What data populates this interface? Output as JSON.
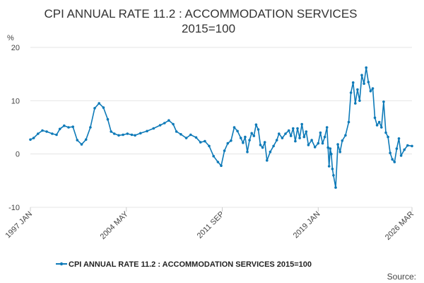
{
  "page": {
    "title_line1": "CPI ANNUAL RATE 11.2 : ACCOMMODATION SERVICES",
    "title_line2": "2015=100",
    "unit": "%",
    "source_label": "Source:",
    "legend_label": "CPI ANNUAL RATE 11.2 : ACCOMMODATION SERVICES 2015=100"
  },
  "chart_data": {
    "type": "line",
    "title": "CPI ANNUAL RATE 11.2 : ACCOMMODATION SERVICES 2015=100",
    "ylabel": "%",
    "ylim": [
      -10,
      20
    ],
    "y_ticks": [
      -10,
      0,
      10,
      20
    ],
    "x_range": [
      "1997-01",
      "2026-03"
    ],
    "x_ticks": [
      {
        "label": "1997 JAN",
        "date": "1997-01"
      },
      {
        "label": "2004 MAY",
        "date": "2004-05"
      },
      {
        "label": "2011 SEP",
        "date": "2011-09"
      },
      {
        "label": "2019 JAN",
        "date": "2019-01"
      },
      {
        "label": "2026 MAR",
        "date": "2026-03"
      }
    ],
    "grid": true,
    "legend_position": "bottom",
    "line_color": "#0e7ab8",
    "series": [
      {
        "name": "CPI ANNUAL RATE 11.2 : ACCOMMODATION SERVICES 2015=100",
        "points": [
          [
            "1997-01",
            2.7
          ],
          [
            "1997-04",
            3.0
          ],
          [
            "1997-08",
            3.8
          ],
          [
            "1997-12",
            4.4
          ],
          [
            "1998-04",
            4.2
          ],
          [
            "1998-09",
            3.8
          ],
          [
            "1999-01",
            3.6
          ],
          [
            "1999-04",
            4.7
          ],
          [
            "1999-08",
            5.3
          ],
          [
            "1999-12",
            5.0
          ],
          [
            "2000-04",
            5.1
          ],
          [
            "2000-08",
            2.6
          ],
          [
            "2000-12",
            1.8
          ],
          [
            "2001-04",
            2.7
          ],
          [
            "2001-08",
            5.0
          ],
          [
            "2001-12",
            8.6
          ],
          [
            "2002-04",
            9.5
          ],
          [
            "2002-08",
            8.7
          ],
          [
            "2002-12",
            6.5
          ],
          [
            "2003-03",
            4.2
          ],
          [
            "2003-06",
            3.8
          ],
          [
            "2003-10",
            3.5
          ],
          [
            "2004-02",
            3.6
          ],
          [
            "2004-06",
            3.8
          ],
          [
            "2004-10",
            3.6
          ],
          [
            "2005-01",
            3.5
          ],
          [
            "2005-06",
            3.9
          ],
          [
            "2005-12",
            4.3
          ],
          [
            "2006-06",
            4.8
          ],
          [
            "2006-12",
            5.4
          ],
          [
            "2007-04",
            5.8
          ],
          [
            "2007-08",
            6.3
          ],
          [
            "2007-12",
            5.6
          ],
          [
            "2008-03",
            4.2
          ],
          [
            "2008-07",
            3.7
          ],
          [
            "2008-12",
            3.0
          ],
          [
            "2009-04",
            3.6
          ],
          [
            "2009-09",
            3.1
          ],
          [
            "2010-01",
            2.2
          ],
          [
            "2010-05",
            2.4
          ],
          [
            "2010-09",
            1.5
          ],
          [
            "2011-01",
            -0.4
          ],
          [
            "2011-05",
            -1.5
          ],
          [
            "2011-08",
            -2.2
          ],
          [
            "2011-11",
            0.6
          ],
          [
            "2012-02",
            2.0
          ],
          [
            "2012-05",
            2.5
          ],
          [
            "2012-08",
            5.0
          ],
          [
            "2012-11",
            4.3
          ],
          [
            "2013-02",
            3.0
          ],
          [
            "2013-04",
            2.1
          ],
          [
            "2013-06",
            3.2
          ],
          [
            "2013-08",
            0.4
          ],
          [
            "2013-10",
            2.6
          ],
          [
            "2013-12",
            3.9
          ],
          [
            "2014-02",
            3.4
          ],
          [
            "2014-04",
            5.5
          ],
          [
            "2014-06",
            4.6
          ],
          [
            "2014-08",
            1.7
          ],
          [
            "2014-10",
            1.2
          ],
          [
            "2014-12",
            2.2
          ],
          [
            "2015-02",
            -1.2
          ],
          [
            "2015-05",
            0.4
          ],
          [
            "2015-08",
            1.5
          ],
          [
            "2015-11",
            2.6
          ],
          [
            "2016-01",
            3.8
          ],
          [
            "2016-04",
            3.0
          ],
          [
            "2016-07",
            3.8
          ],
          [
            "2016-10",
            4.4
          ],
          [
            "2016-12",
            3.4
          ],
          [
            "2017-02",
            4.8
          ],
          [
            "2017-04",
            2.4
          ],
          [
            "2017-06",
            4.8
          ],
          [
            "2017-08",
            3.0
          ],
          [
            "2017-10",
            5.6
          ],
          [
            "2017-12",
            3.2
          ],
          [
            "2018-02",
            4.2
          ],
          [
            "2018-04",
            1.7
          ],
          [
            "2018-07",
            2.6
          ],
          [
            "2018-10",
            1.3
          ],
          [
            "2019-01",
            2.0
          ],
          [
            "2019-03",
            4.0
          ],
          [
            "2019-05",
            2.0
          ],
          [
            "2019-07",
            3.2
          ],
          [
            "2019-09",
            5.0
          ],
          [
            "2019-10",
            1.2
          ],
          [
            "2019-11",
            -2.3
          ],
          [
            "2019-12",
            1.0
          ],
          [
            "2020-01",
            0.0
          ],
          [
            "2020-02",
            -2.8
          ],
          [
            "2020-03",
            -4.0
          ],
          [
            "2020-05",
            -6.3
          ],
          [
            "2020-07",
            1.8
          ],
          [
            "2020-09",
            0.4
          ],
          [
            "2020-11",
            2.5
          ],
          [
            "2021-02",
            3.5
          ],
          [
            "2021-05",
            6.0
          ],
          [
            "2021-07",
            11.5
          ],
          [
            "2021-09",
            13.4
          ],
          [
            "2021-11",
            9.5
          ],
          [
            "2022-01",
            12.1
          ],
          [
            "2022-03",
            10.0
          ],
          [
            "2022-05",
            14.8
          ],
          [
            "2022-07",
            13.2
          ],
          [
            "2022-09",
            16.2
          ],
          [
            "2022-11",
            13.5
          ],
          [
            "2023-01",
            11.8
          ],
          [
            "2023-03",
            12.3
          ],
          [
            "2023-05",
            6.8
          ],
          [
            "2023-07",
            5.4
          ],
          [
            "2023-09",
            6.0
          ],
          [
            "2023-11",
            5.0
          ],
          [
            "2024-01",
            9.8
          ],
          [
            "2024-03",
            4.0
          ],
          [
            "2024-05",
            3.2
          ],
          [
            "2024-07",
            0.2
          ],
          [
            "2024-09",
            -1.0
          ],
          [
            "2024-11",
            -1.5
          ],
          [
            "2025-01",
            1.0
          ],
          [
            "2025-03",
            2.9
          ],
          [
            "2025-05",
            -0.3
          ],
          [
            "2025-08",
            0.8
          ],
          [
            "2025-11",
            1.6
          ],
          [
            "2026-03",
            1.5
          ]
        ]
      }
    ]
  }
}
